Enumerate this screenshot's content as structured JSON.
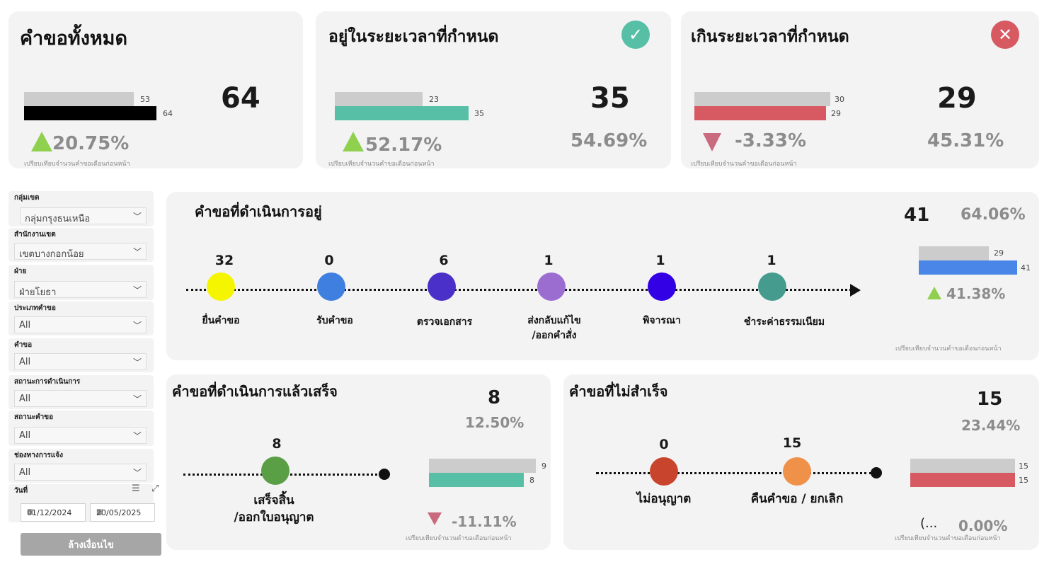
{
  "colors": {
    "card_bg": "#f3f3f3",
    "prev_bar": "#cccccc",
    "total_bar": "#000000",
    "on_time": "#56bfa6",
    "overdue": "#d75a63",
    "in_progress_bar": "#4a86e8",
    "up": "#8fd14f",
    "down": "#c96a7e"
  },
  "card_total": {
    "title": "คำขอทั้งหมด",
    "value": "64",
    "prev": 53,
    "curr": 64,
    "prev_label": "53",
    "curr_label": "64",
    "change": "20.75%",
    "note": "เปรียบเทียบจำนวนคำขอเดือนก่อนหน้า"
  },
  "card_ontime": {
    "title": "อยู่ในระยะเวลาที่กำหนด",
    "icon": "check-icon",
    "value": "35",
    "percent": "54.69%",
    "prev": 23,
    "curr": 35,
    "prev_label": "23",
    "curr_label": "35",
    "change": "52.17%",
    "note": "เปรียบเทียบจำนวนคำขอเดือนก่อนหน้า"
  },
  "card_overdue": {
    "title": "เกินระยะเวลาที่กำหนด",
    "icon": "close-icon",
    "value": "29",
    "percent": "45.31%",
    "prev": 30,
    "curr": 29,
    "prev_label": "30",
    "curr_label": "29",
    "change": "-3.33%",
    "note": "เปรียบเทียบจำนวนคำขอเดือนก่อนหน้า"
  },
  "filters": [
    {
      "label": "กลุ่มเขต",
      "value": "กลุ่มกรุงธนเหนือ"
    },
    {
      "label": "สำนักงานเขต",
      "value": "เขตบางกอกน้อย"
    },
    {
      "label": "ฝ่าย",
      "value": "ฝ่ายโยธา"
    },
    {
      "label": "ประเภทคำขอ",
      "value": "All"
    },
    {
      "label": "คำขอ",
      "value": "All"
    },
    {
      "label": "สถานะการดำเนินการ",
      "value": "All"
    },
    {
      "label": "สถานะคำขอ",
      "value": "All"
    },
    {
      "label": "ช่องทางการแจ้ง",
      "value": "All"
    }
  ],
  "date_filter": {
    "label": "วันที่",
    "start": "01/12/2024",
    "end": "20/05/2025"
  },
  "clear_button": "ล้างเงื่อนไข",
  "in_progress": {
    "title": "คำขอที่ดำเนินการอยู่",
    "total": "41",
    "percent": "64.06%",
    "prev": 29,
    "curr": 41,
    "prev_label": "29",
    "curr_label": "41",
    "change": "41.38%",
    "note": "เปรียบเทียบจำนวนคำขอเดือนก่อนหน้า",
    "stages": [
      {
        "value": "32",
        "label": "ยื่นคำขอ",
        "color": "#f5f500"
      },
      {
        "value": "0",
        "label": "รับคำขอ",
        "color": "#3f7fe0"
      },
      {
        "value": "6",
        "label": "ตรวจเอกสาร",
        "color": "#4a2fc8"
      },
      {
        "value": "1",
        "label": "ส่งกลับแก้ไข\n/ออกคำสั่ง",
        "color": "#9b6dd0"
      },
      {
        "value": "1",
        "label": "พิจารณา",
        "color": "#3300e6"
      },
      {
        "value": "1",
        "label": "ชำระค่าธรรมเนียม",
        "color": "#459c8e"
      }
    ]
  },
  "completed": {
    "title": "คำขอที่ดำเนินการแล้วเสร็จ",
    "total": "8",
    "percent": "12.50%",
    "prev": 9,
    "curr": 8,
    "prev_label": "9",
    "curr_label": "8",
    "change": "-11.11%",
    "note": "เปรียบเทียบจำนวนคำขอเดือนก่อนหน้า",
    "stage": {
      "value": "8",
      "label": "เสร็จสิ้น\n/ออกใบอนุญาต",
      "color": "#5a9e45"
    }
  },
  "failed": {
    "title": "คำขอที่ไม่สำเร็จ",
    "total": "15",
    "percent": "23.44%",
    "prev": 15,
    "curr": 15,
    "prev_label": "15",
    "curr_label": "15",
    "change_prefix": "(...",
    "change": "0.00%",
    "note": "เปรียบเทียบจำนวนคำขอเดือนก่อนหน้า",
    "stages": [
      {
        "value": "0",
        "label": "ไม่อนุญาต",
        "color": "#c8442d"
      },
      {
        "value": "15",
        "label": "คืนคำขอ / ยกเลิก",
        "color": "#f0914a"
      }
    ]
  }
}
